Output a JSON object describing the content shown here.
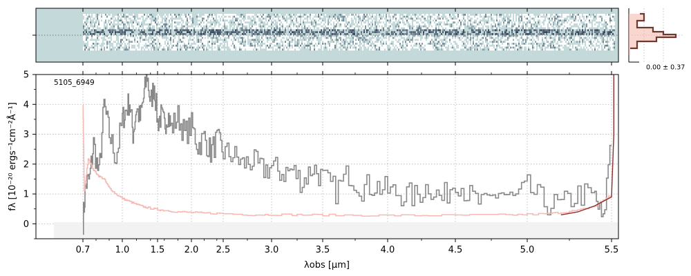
{
  "chart_data": [
    {
      "type": "heatmap",
      "panel": "2d-spectrum",
      "title": "",
      "colormap": [
        "#c4dada",
        "#ffffff",
        "#1c2b45"
      ],
      "background_color": "#c4dada",
      "coverage_x": [
        0.7,
        5.51
      ],
      "trace_center_y": 0.0
    },
    {
      "type": "line",
      "panel": "1d-spectrum",
      "annotation": "5105_6949",
      "xlabel": "λobs [μm]",
      "ylabel": "fλ [10⁻²⁰ ergs⁻¹cm⁻²Å⁻¹]",
      "xlim": [
        0.56,
        5.53
      ],
      "ylim": [
        -0.5,
        5.0
      ],
      "x_axis_scale": "wavelength",
      "xticks": [
        "0.7",
        "1.0",
        "1.5",
        "2.0",
        "2.5",
        "3.0",
        "3.5",
        "4.0",
        "4.5",
        "5.0",
        "5.5"
      ],
      "yticks": [
        "0",
        "1",
        "2",
        "3",
        "4",
        "5"
      ],
      "grid": true,
      "series": [
        {
          "role": "flux",
          "color": "#888888",
          "x": [
            0.7,
            0.72,
            0.75,
            0.78,
            0.82,
            0.86,
            0.9,
            0.95,
            1.0,
            1.05,
            1.1,
            1.15,
            1.2,
            1.25,
            1.3,
            1.35,
            1.4,
            1.45,
            1.5,
            1.55,
            1.6,
            1.65,
            1.7,
            1.8,
            1.9,
            2.0,
            2.1,
            2.2,
            2.3,
            2.4,
            2.5,
            2.6,
            2.7,
            2.8,
            2.9,
            3.0,
            3.1,
            3.2,
            3.3,
            3.4,
            3.5,
            3.6,
            3.7,
            3.8,
            3.9,
            4.0,
            4.1,
            4.2,
            4.3,
            4.4,
            4.5,
            4.6,
            4.7,
            4.8,
            4.9,
            5.0,
            5.1,
            5.2,
            5.3,
            5.4,
            5.45,
            5.5
          ],
          "y": [
            0.1,
            1.3,
            1.5,
            2.7,
            1.6,
            4.0,
            3.0,
            2.2,
            3.5,
            3.8,
            4.1,
            3.0,
            3.9,
            3.5,
            4.2,
            5.0,
            4.0,
            4.7,
            3.4,
            3.6,
            3.3,
            3.7,
            3.2,
            3.6,
            3.0,
            3.3,
            2.6,
            2.9,
            2.4,
            2.8,
            2.4,
            2.3,
            2.0,
            2.1,
            1.8,
            1.9,
            1.7,
            1.8,
            1.4,
            1.9,
            1.5,
            1.1,
            1.7,
            1.2,
            1.3,
            1.1,
            1.0,
            0.9,
            1.3,
            0.8,
            1.5,
            0.9,
            0.6,
            1.1,
            0.8,
            1.2,
            0.7,
            0.6,
            1.0,
            0.9,
            0.0,
            3.4
          ]
        },
        {
          "role": "uncertainty",
          "color": "#f6b8b0",
          "x": [
            0.7,
            0.71,
            0.74,
            0.78,
            0.82,
            0.86,
            0.9,
            0.95,
            1.0,
            1.1,
            1.2,
            1.3,
            1.4,
            1.5,
            1.6,
            1.8,
            2.0,
            2.2,
            2.5,
            2.8,
            3.0,
            3.3,
            3.6,
            4.0,
            4.3,
            4.6,
            4.9,
            5.1,
            5.2,
            5.3,
            5.4,
            5.5
          ],
          "y": [
            4.0,
            1.1,
            2.2,
            1.8,
            1.6,
            1.5,
            1.2,
            1.0,
            0.85,
            0.75,
            0.65,
            0.57,
            0.52,
            0.48,
            0.45,
            0.4,
            0.38,
            0.36,
            0.34,
            0.3,
            0.31,
            0.3,
            0.29,
            0.28,
            0.28,
            0.29,
            0.3,
            0.33,
            0.38,
            0.45,
            0.6,
            1.0
          ]
        },
        {
          "role": "model-edge",
          "color": "#8b2e2e",
          "x": [
            5.2,
            5.3,
            5.4,
            5.45,
            5.5,
            5.51,
            5.51
          ],
          "y": [
            0.3,
            0.4,
            0.6,
            0.75,
            0.9,
            3.0,
            5.0
          ]
        }
      ]
    },
    {
      "type": "area",
      "panel": "spatial-profile",
      "annotation": "0.00 ± 0.37",
      "series": [
        {
          "role": "profile-fill",
          "color": "#f4b4aa"
        },
        {
          "role": "profile-line",
          "color": "#6b3a2e"
        }
      ]
    }
  ]
}
